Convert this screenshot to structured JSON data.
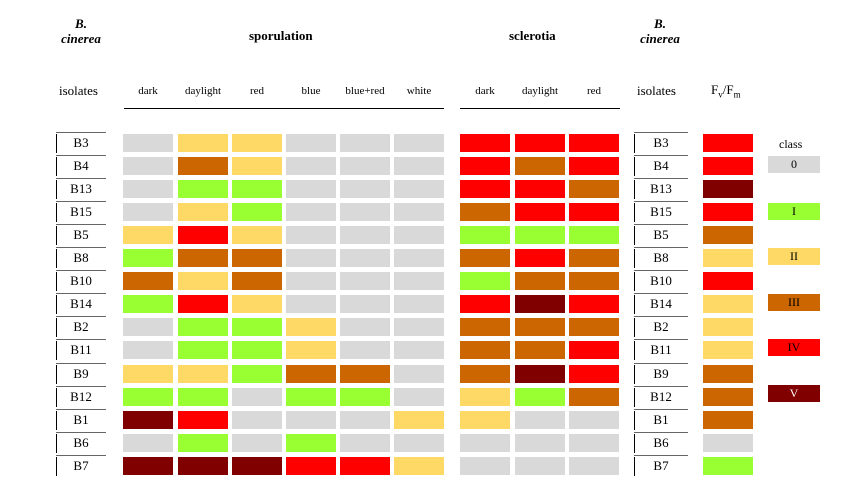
{
  "colors": {
    "0": "#d9d9d9",
    "I": "#99ff33",
    "II": "#ffd966",
    "III": "#cc6600",
    "IV": "#ff0000",
    "V": "#800000"
  },
  "header": {
    "species_left": [
      "B.",
      "cinerea"
    ],
    "species_right": [
      "B.",
      "cinerea"
    ],
    "sporulation": "sporulation",
    "sclerotia": "sclerotia",
    "isolates_left": "isolates",
    "isolates_right": "isolates",
    "fvfm": "Fv/Fm"
  },
  "legend": {
    "title": "class",
    "classes": [
      "0",
      "I",
      "II",
      "III",
      "IV",
      "V"
    ]
  },
  "chart_data": {
    "type": "table",
    "columns": {
      "sporulation": [
        "dark",
        "daylight",
        "red",
        "blue",
        "blue+red",
        "white"
      ],
      "sclerotia": [
        "dark",
        "daylight",
        "red"
      ],
      "fvfm": [
        "Fv/Fm"
      ]
    },
    "rows": [
      {
        "isolate": "B3",
        "sporulation": [
          "0",
          "II",
          "II",
          "0",
          "0",
          "0"
        ],
        "sclerotia": [
          "IV",
          "IV",
          "IV"
        ],
        "fvfm": "IV"
      },
      {
        "isolate": "B4",
        "sporulation": [
          "0",
          "III",
          "II",
          "0",
          "0",
          "0"
        ],
        "sclerotia": [
          "IV",
          "III",
          "IV"
        ],
        "fvfm": "IV"
      },
      {
        "isolate": "B13",
        "sporulation": [
          "0",
          "I",
          "I",
          "0",
          "0",
          "0"
        ],
        "sclerotia": [
          "IV",
          "IV",
          "III"
        ],
        "fvfm": "V"
      },
      {
        "isolate": "B15",
        "sporulation": [
          "0",
          "II",
          "I",
          "0",
          "0",
          "0"
        ],
        "sclerotia": [
          "III",
          "IV",
          "IV"
        ],
        "fvfm": "IV"
      },
      {
        "isolate": "B5",
        "sporulation": [
          "II",
          "IV",
          "II",
          "0",
          "0",
          "0"
        ],
        "sclerotia": [
          "I",
          "I",
          "I"
        ],
        "fvfm": "III"
      },
      {
        "isolate": "B8",
        "sporulation": [
          "I",
          "III",
          "III",
          "0",
          "0",
          "0"
        ],
        "sclerotia": [
          "III",
          "IV",
          "III"
        ],
        "fvfm": "II"
      },
      {
        "isolate": "B10",
        "sporulation": [
          "III",
          "II",
          "III",
          "0",
          "0",
          "0"
        ],
        "sclerotia": [
          "I",
          "III",
          "III"
        ],
        "fvfm": "IV"
      },
      {
        "isolate": "B14",
        "sporulation": [
          "I",
          "IV",
          "II",
          "0",
          "0",
          "0"
        ],
        "sclerotia": [
          "IV",
          "V",
          "IV"
        ],
        "fvfm": "II"
      },
      {
        "isolate": "B2",
        "sporulation": [
          "0",
          "I",
          "I",
          "II",
          "0",
          "0"
        ],
        "sclerotia": [
          "III",
          "III",
          "III"
        ],
        "fvfm": "II"
      },
      {
        "isolate": "B11",
        "sporulation": [
          "0",
          "I",
          "I",
          "II",
          "0",
          "0"
        ],
        "sclerotia": [
          "III",
          "III",
          "IV"
        ],
        "fvfm": "II"
      },
      {
        "isolate": "B9",
        "sporulation": [
          "II",
          "II",
          "I",
          "III",
          "III",
          "0"
        ],
        "sclerotia": [
          "III",
          "V",
          "IV"
        ],
        "fvfm": "III"
      },
      {
        "isolate": "B12",
        "sporulation": [
          "I",
          "I",
          "0",
          "I",
          "I",
          "0"
        ],
        "sclerotia": [
          "II",
          "I",
          "III"
        ],
        "fvfm": "III"
      },
      {
        "isolate": "B1",
        "sporulation": [
          "V",
          "IV",
          "0",
          "0",
          "0",
          "II"
        ],
        "sclerotia": [
          "II",
          "0",
          "0"
        ],
        "fvfm": "III"
      },
      {
        "isolate": "B6",
        "sporulation": [
          "0",
          "I",
          "0",
          "I",
          "0",
          "0"
        ],
        "sclerotia": [
          "0",
          "0",
          "0"
        ],
        "fvfm": "0"
      },
      {
        "isolate": "B7",
        "sporulation": [
          "V",
          "V",
          "V",
          "IV",
          "IV",
          "II"
        ],
        "sclerotia": [
          "0",
          "0",
          "0"
        ],
        "fvfm": "I"
      }
    ]
  }
}
